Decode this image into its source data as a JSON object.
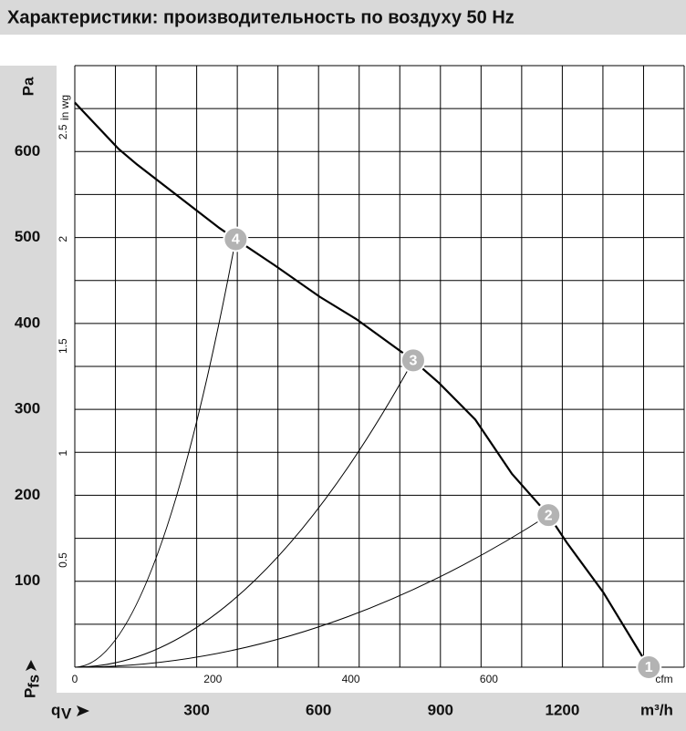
{
  "chart_data": {
    "type": "line",
    "title": "Характеристики: производительность по воздуху 50 Hz",
    "y_label": "Pa",
    "y2_label": "in wg",
    "x2_label": "cfm",
    "x_label": "m³/h",
    "y_symbol": "P",
    "y_symbol_sub": "fs",
    "x_symbol": "q",
    "x_symbol_sub": "V",
    "xlim": [
      0,
      1500
    ],
    "ylim": [
      0,
      700
    ],
    "xticks": [
      300,
      600,
      900,
      1200
    ],
    "yticks": [
      100,
      200,
      300,
      400,
      500,
      600
    ],
    "x2lim": [
      0,
      883
    ],
    "x2ticks": [
      0,
      200,
      400,
      600
    ],
    "y2lim": [
      0,
      2.81
    ],
    "y2ticks": [
      0.5,
      1,
      1.5,
      2,
      2.5
    ],
    "xgrid": [
      0,
      100,
      200,
      300,
      400,
      500,
      600,
      700,
      800,
      900,
      1000,
      1100,
      1200,
      1300,
      1400,
      1500
    ],
    "ygrid": [
      0,
      50,
      100,
      150,
      200,
      250,
      300,
      350,
      400,
      450,
      500,
      550,
      600,
      650,
      700
    ],
    "series": [
      {
        "color": "#000000",
        "x": [
          0,
          108,
          153,
          356,
          396,
          491,
          603,
          693,
          833,
          896,
          986,
          1076,
          1166,
          1211,
          1301,
          1413
        ],
        "y": [
          657,
          603,
          585,
          511,
          498,
          468,
          431,
          405,
          357,
          331,
          288,
          225,
          177,
          145,
          87,
          0
        ]
      }
    ],
    "operating_points": [
      {
        "label": "1",
        "x": 1413,
        "y": 0
      },
      {
        "label": "2",
        "x": 1166,
        "y": 177
      },
      {
        "label": "3",
        "x": 833,
        "y": 357
      },
      {
        "label": "4",
        "x": 396,
        "y": 498
      }
    ],
    "point_color": "#b3b3b3"
  }
}
